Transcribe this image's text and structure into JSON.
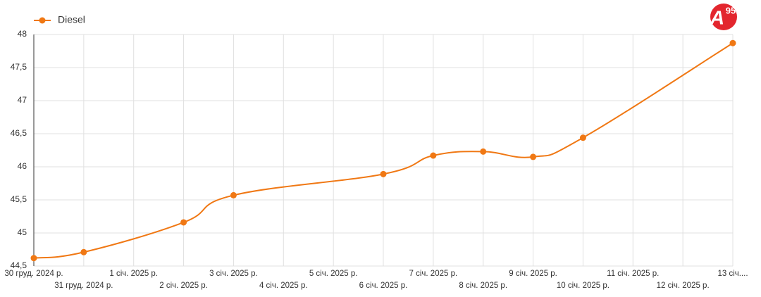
{
  "chart_data": {
    "type": "line",
    "categories": [
      "30 груд. 2024 р.",
      "31 груд. 2024 р.",
      "1 січ. 2025 р.",
      "2 січ. 2025 р.",
      "3 січ. 2025 р.",
      "4 січ. 2025 р.",
      "5 січ. 2025 р.",
      "6 січ. 2025 р.",
      "7 січ. 2025 р.",
      "8 січ. 2025 р.",
      "9 січ. 2025 р.",
      "10 січ. 2025 р.",
      "11 січ. 2025 р.",
      "12 січ. 2025 р.",
      "13 січ...."
    ],
    "series": [
      {
        "name": "Diesel",
        "color": "#f07814",
        "values": [
          44.62,
          44.71,
          null,
          45.16,
          45.57,
          null,
          null,
          45.89,
          46.17,
          46.23,
          46.15,
          46.44,
          null,
          null,
          47.87
        ]
      }
    ],
    "span_gaps": true,
    "ylim": [
      44.5,
      48
    ],
    "yticks": [
      {
        "value": 44.5,
        "label": "44,5"
      },
      45,
      {
        "value": 45.5,
        "label": "45,5"
      },
      46,
      {
        "value": 46.5,
        "label": "46,5"
      },
      47,
      {
        "value": 47.5,
        "label": "47,5"
      },
      48
    ],
    "grid": true,
    "legend": "top-left"
  },
  "logo": {
    "letter": "A",
    "number": "95"
  }
}
